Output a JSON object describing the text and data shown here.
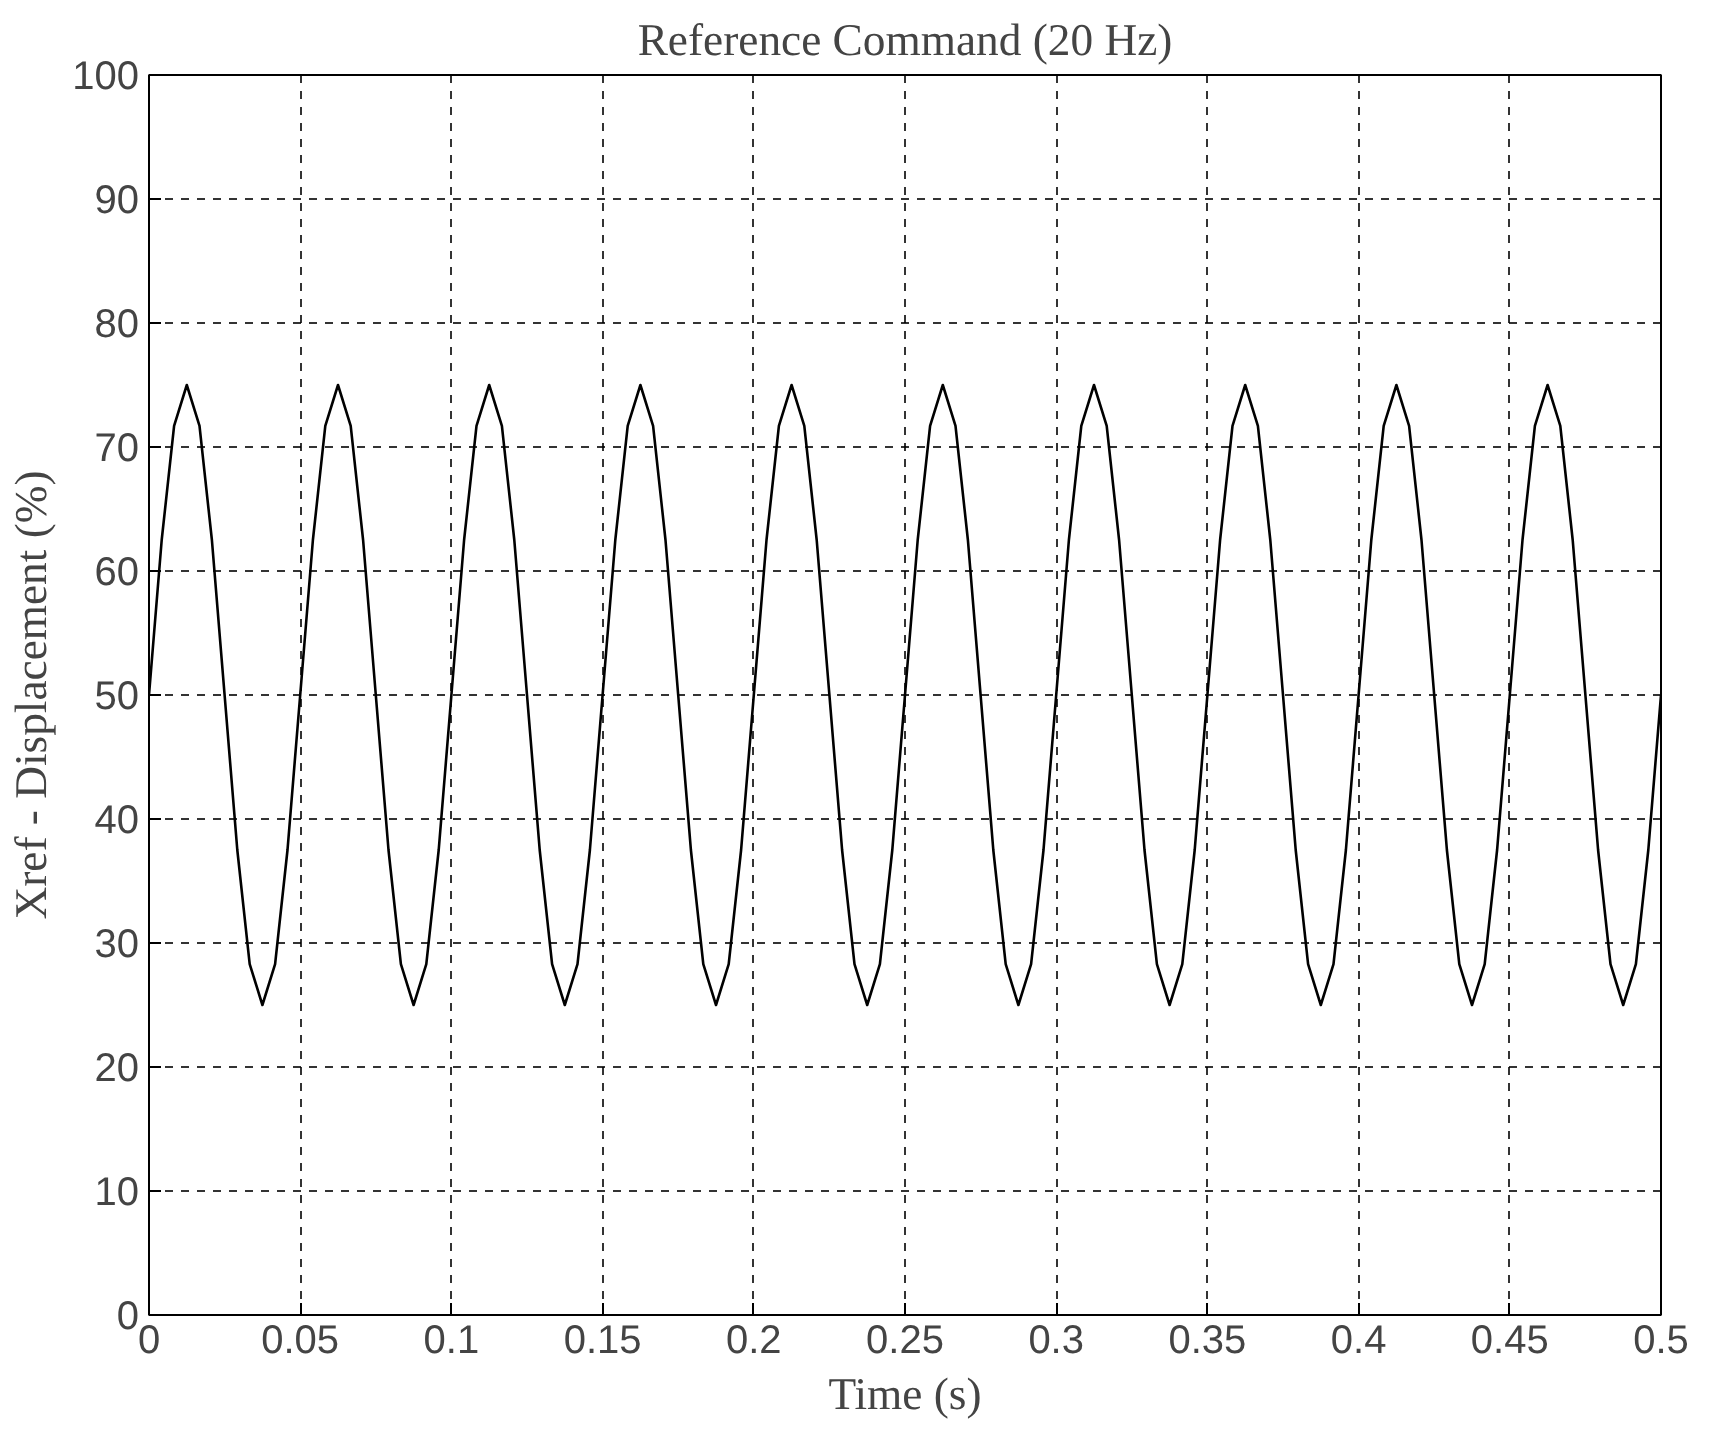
{
  "chart_data": {
    "type": "line",
    "title": "Reference Command (20 Hz)",
    "xlabel": "Time (s)",
    "ylabel": "Xref - Displacement (%)",
    "x": [
      0,
      0.0042,
      0.0083,
      0.0125,
      0.0167,
      0.0208,
      0.025,
      0.0292,
      0.0333,
      0.0375,
      0.0417,
      0.0458,
      0.05,
      0.0542,
      0.0583,
      0.0625,
      0.0667,
      0.0708,
      0.075,
      0.0792,
      0.0833,
      0.0875,
      0.0917,
      0.0958,
      0.1,
      0.1042,
      0.1083,
      0.1125,
      0.1167,
      0.1208,
      0.125,
      0.1292,
      0.1333,
      0.1375,
      0.1417,
      0.1458,
      0.15,
      0.1542,
      0.1583,
      0.1625,
      0.1667,
      0.1708,
      0.175,
      0.1792,
      0.1833,
      0.1875,
      0.1917,
      0.1958,
      0.2,
      0.2042,
      0.2083,
      0.2125,
      0.2167,
      0.2208,
      0.225,
      0.2292,
      0.2333,
      0.2375,
      0.2417,
      0.2458,
      0.25,
      0.2542,
      0.2583,
      0.2625,
      0.2667,
      0.2708,
      0.275,
      0.2792,
      0.2833,
      0.2875,
      0.2917,
      0.2958,
      0.3,
      0.3042,
      0.3083,
      0.3125,
      0.3167,
      0.3208,
      0.325,
      0.3292,
      0.3333,
      0.3375,
      0.3417,
      0.3458,
      0.35,
      0.3542,
      0.3583,
      0.3625,
      0.3667,
      0.3708,
      0.375,
      0.3792,
      0.3833,
      0.3875,
      0.3917,
      0.3958,
      0.4,
      0.4042,
      0.4083,
      0.4125,
      0.4167,
      0.4208,
      0.425,
      0.4292,
      0.4333,
      0.4375,
      0.4417,
      0.4458,
      0.45,
      0.4542,
      0.4583,
      0.4625,
      0.4667,
      0.4708,
      0.475,
      0.4792,
      0.4833,
      0.4875,
      0.4917,
      0.4958,
      0.5
    ],
    "series": [
      {
        "color": "#000000",
        "values": [
          50,
          62.5,
          71.7,
          75,
          71.7,
          62.5,
          50,
          37.5,
          28.3,
          25,
          28.3,
          37.5,
          50,
          62.5,
          71.7,
          75,
          71.7,
          62.5,
          50,
          37.5,
          28.3,
          25,
          28.3,
          37.5,
          50,
          62.5,
          71.7,
          75,
          71.7,
          62.5,
          50,
          37.5,
          28.3,
          25,
          28.3,
          37.5,
          50,
          62.5,
          71.7,
          75,
          71.7,
          62.5,
          50,
          37.5,
          28.3,
          25,
          28.3,
          37.5,
          50,
          62.5,
          71.7,
          75,
          71.7,
          62.5,
          50,
          37.5,
          28.3,
          25,
          28.3,
          37.5,
          50,
          62.5,
          71.7,
          75,
          71.7,
          62.5,
          50,
          37.5,
          28.3,
          25,
          28.3,
          37.5,
          50,
          62.5,
          71.7,
          75,
          71.7,
          62.5,
          50,
          37.5,
          28.3,
          25,
          28.3,
          37.5,
          50,
          62.5,
          71.7,
          75,
          71.7,
          62.5,
          50,
          37.5,
          28.3,
          25,
          28.3,
          37.5,
          50,
          62.5,
          71.7,
          75,
          71.7,
          62.5,
          50,
          37.5,
          28.3,
          25,
          28.3,
          37.5,
          50,
          62.5,
          71.7,
          75,
          71.7,
          62.5,
          50,
          37.5,
          28.3,
          25,
          28.3,
          37.5,
          50
        ]
      }
    ],
    "xlim": [
      0,
      0.5
    ],
    "ylim": [
      0,
      100
    ],
    "xticks": [
      0,
      0.05,
      0.1,
      0.15,
      0.2,
      0.25,
      0.3,
      0.35,
      0.4,
      0.45,
      0.5
    ],
    "yticks": [
      0,
      10,
      20,
      30,
      40,
      50,
      60,
      70,
      80,
      90,
      100
    ],
    "grid": true,
    "line_style": "solid"
  }
}
